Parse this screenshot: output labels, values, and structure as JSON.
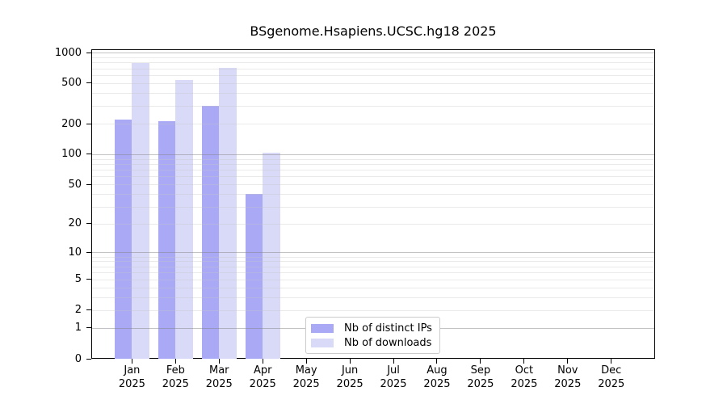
{
  "title": "BSgenome.Hsapiens.UCSC.hg18 2025",
  "chart_data": {
    "type": "bar",
    "title": "BSgenome.Hsapiens.UCSC.hg18 2025",
    "categories": [
      "Jan",
      "Feb",
      "Mar",
      "Apr",
      "May",
      "Jun",
      "Jul",
      "Aug",
      "Sep",
      "Oct",
      "Nov",
      "Dec"
    ],
    "year_label": "2025",
    "series": [
      {
        "name": "Nb of distinct IPs",
        "color": "#a9a9f6",
        "values": [
          218,
          213,
          300,
          40,
          0,
          0,
          0,
          0,
          0,
          0,
          0,
          0
        ]
      },
      {
        "name": "Nb of downloads",
        "color": "#d9d9f8",
        "values": [
          785,
          537,
          712,
          103,
          0,
          0,
          0,
          0,
          0,
          0,
          0,
          0
        ]
      }
    ],
    "xlabel": "",
    "ylabel": "",
    "yscale": "log1p",
    "ylim": [
      0,
      1000
    ],
    "yticks": [
      0,
      1,
      2,
      5,
      10,
      20,
      50,
      100,
      200,
      500,
      1000
    ],
    "major_grid_values": [
      1,
      10,
      100,
      1000
    ],
    "grid": true,
    "legend_position": "inside-bottom-center"
  },
  "colors": {
    "axis": "#000000",
    "major_grid": "#c6c6c6",
    "minor_grid": "#ececec",
    "legend_border": "#cbcbcb",
    "background": "#ffffff"
  }
}
